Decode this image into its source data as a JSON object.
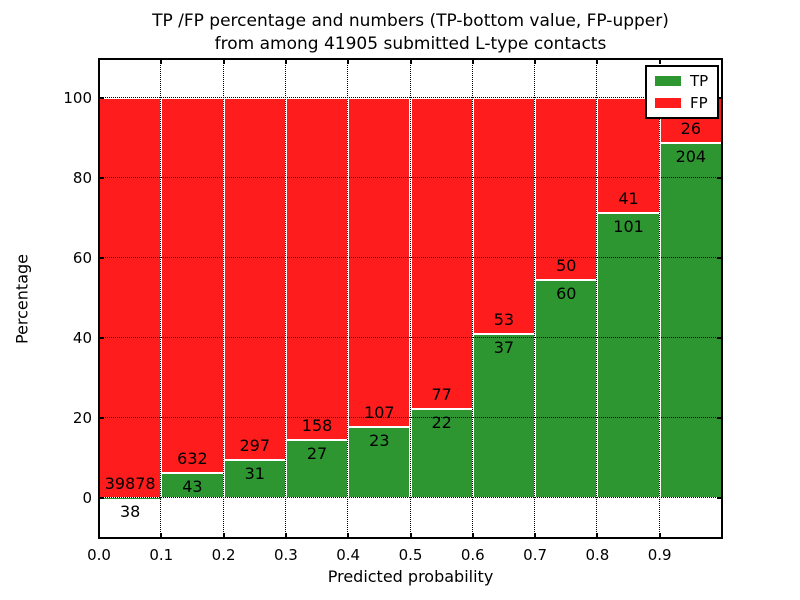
{
  "title": {
    "line1": "TP /FP percentage and numbers (TP-bottom value, FP-upper)",
    "line2": "from among 41905 submitted L-type contacts"
  },
  "chart_data": {
    "type": "bar",
    "stacked": true,
    "title": "TP /FP percentage and numbers (TP-bottom value, FP-upper)\nfrom among 41905 submitted L-type contacts",
    "xlabel": "Predicted probability",
    "ylabel": "Percentage",
    "total_submitted_contacts": 41905,
    "xlim": [
      0.0,
      1.0
    ],
    "ylim": [
      -10,
      109.75
    ],
    "x_ticks": [
      "0.0",
      "0.1",
      "0.2",
      "0.3",
      "0.4",
      "0.5",
      "0.6",
      "0.7",
      "0.8",
      "0.9"
    ],
    "y_ticks": [
      "0",
      "20",
      "40",
      "60",
      "80",
      "100"
    ],
    "grid": true,
    "bin_width": 0.1,
    "bins": [
      {
        "x0": 0.0,
        "x1": 0.1,
        "tp": 38,
        "fp": 39878,
        "tp_pct": 0.1
      },
      {
        "x0": 0.1,
        "x1": 0.2,
        "tp": 43,
        "fp": 632,
        "tp_pct": 6.37
      },
      {
        "x0": 0.2,
        "x1": 0.3,
        "tp": 31,
        "fp": 297,
        "tp_pct": 9.45
      },
      {
        "x0": 0.3,
        "x1": 0.4,
        "tp": 27,
        "fp": 158,
        "tp_pct": 14.59
      },
      {
        "x0": 0.4,
        "x1": 0.5,
        "tp": 23,
        "fp": 107,
        "tp_pct": 17.69
      },
      {
        "x0": 0.5,
        "x1": 0.6,
        "tp": 22,
        "fp": 77,
        "tp_pct": 22.22
      },
      {
        "x0": 0.6,
        "x1": 0.7,
        "tp": 37,
        "fp": 53,
        "tp_pct": 41.11
      },
      {
        "x0": 0.7,
        "x1": 0.8,
        "tp": 60,
        "fp": 50,
        "tp_pct": 54.55
      },
      {
        "x0": 0.8,
        "x1": 0.9,
        "tp": 101,
        "fp": 41,
        "tp_pct": 71.13
      },
      {
        "x0": 0.9,
        "x1": 1.0,
        "tp": 204,
        "fp": 26,
        "tp_pct": 88.7
      }
    ],
    "series": [
      {
        "name": "TP",
        "color": "#2d9630",
        "values": [
          38,
          43,
          31,
          27,
          23,
          22,
          37,
          60,
          101,
          204
        ]
      },
      {
        "name": "FP",
        "color": "#fe1c1c",
        "values": [
          39878,
          632,
          297,
          158,
          107,
          77,
          53,
          50,
          41,
          26
        ]
      }
    ],
    "legend": {
      "position": "upper right",
      "entries": [
        {
          "label": "TP",
          "color": "#2d9630"
        },
        {
          "label": "FP",
          "color": "#fe1c1c"
        }
      ]
    }
  },
  "colors": {
    "tp": "#2d9630",
    "fp": "#fe1c1c",
    "bar_edge": "#ffffff",
    "grid": "#000000",
    "text": "#000000",
    "background": "#ffffff"
  }
}
